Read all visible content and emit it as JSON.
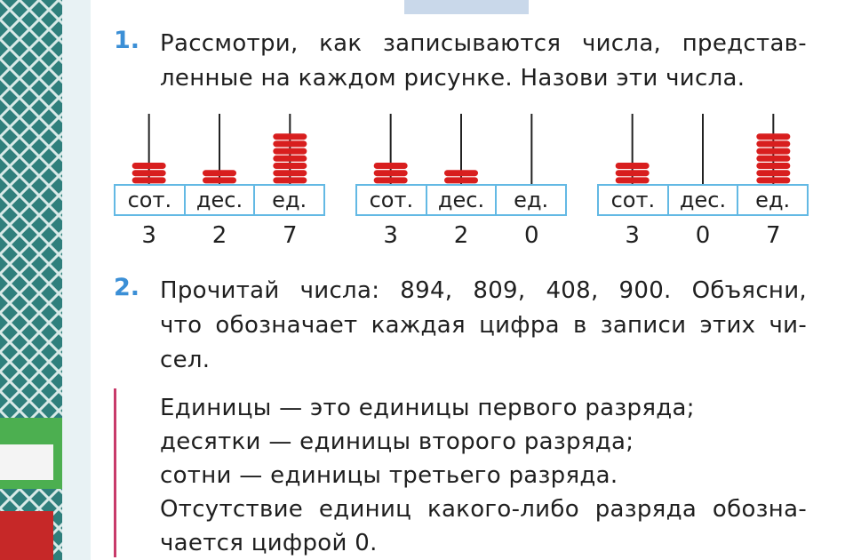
{
  "exercise1": {
    "number": "1.",
    "lines": [
      "Рассмотри, как записываются числа, представ-",
      "ленные на каждом рисунке. Назови эти числа."
    ]
  },
  "abacus_figures": [
    {
      "headers": [
        "сот.",
        "дес.",
        "ед."
      ],
      "digits": [
        "3",
        "2",
        "7"
      ],
      "beads": [
        3,
        2,
        7
      ]
    },
    {
      "headers": [
        "сот.",
        "дес.",
        "ед."
      ],
      "digits": [
        "3",
        "2",
        "0"
      ],
      "beads": [
        3,
        2,
        0
      ]
    },
    {
      "headers": [
        "сот.",
        "дес.",
        "ед."
      ],
      "digits": [
        "3",
        "0",
        "7"
      ],
      "beads": [
        3,
        0,
        7
      ]
    }
  ],
  "exercise2": {
    "number": "2.",
    "lines": [
      "Прочитай числа: 894, 809, 408, 900. Объясни,",
      "что обозначает каждая цифра в записи этих чи-",
      "сел."
    ]
  },
  "rule": {
    "lines": [
      "Единицы — это единицы первого разряда;",
      "десятки — единицы второго разряда;",
      "сотни — единицы третьего разряда.",
      "Отсутствие единиц какого-либо разряда обозна-",
      "чается цифрой 0."
    ]
  },
  "colors": {
    "bead": "#d81e1e",
    "table_border": "#63b9e4",
    "number": "#3b8fd6",
    "rule_bar": "#c83a6a"
  }
}
